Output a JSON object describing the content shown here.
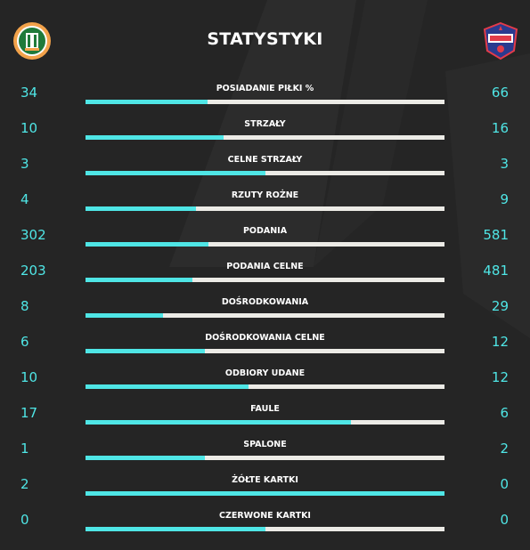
{
  "header": {
    "title": "STATYSTYKI"
  },
  "colors": {
    "accent": "#4fe6e6",
    "track": "#ecebe6",
    "background": "#252525"
  },
  "stats": [
    {
      "label": "POSIADANIE PIŁKI %",
      "home": "34",
      "away": "66",
      "home_share": 0.34
    },
    {
      "label": "STRZAŁY",
      "home": "10",
      "away": "16",
      "home_share": 0.385
    },
    {
      "label": "CELNE STRZAŁY",
      "home": "3",
      "away": "3",
      "home_share": 0.5
    },
    {
      "label": "RZUTY ROŻNE",
      "home": "4",
      "away": "9",
      "home_share": 0.308
    },
    {
      "label": "PODANIA",
      "home": "302",
      "away": "581",
      "home_share": 0.342
    },
    {
      "label": "PODANIA CELNE",
      "home": "203",
      "away": "481",
      "home_share": 0.297
    },
    {
      "label": "DOŚRODKOWANIA",
      "home": "8",
      "away": "29",
      "home_share": 0.216
    },
    {
      "label": "DOŚRODKOWANIA CELNE",
      "home": "6",
      "away": "12",
      "home_share": 0.333
    },
    {
      "label": "ODBIORY UDANE",
      "home": "10",
      "away": "12",
      "home_share": 0.455
    },
    {
      "label": "FAULE",
      "home": "17",
      "away": "6",
      "home_share": 0.739
    },
    {
      "label": "SPALONE",
      "home": "1",
      "away": "2",
      "home_share": 0.333
    },
    {
      "label": "ŻÓŁTE KARTKI",
      "home": "2",
      "away": "0",
      "home_share": 1.0
    },
    {
      "label": "CZERWONE KARTKI",
      "home": "0",
      "away": "0",
      "home_share": 0.5
    }
  ]
}
